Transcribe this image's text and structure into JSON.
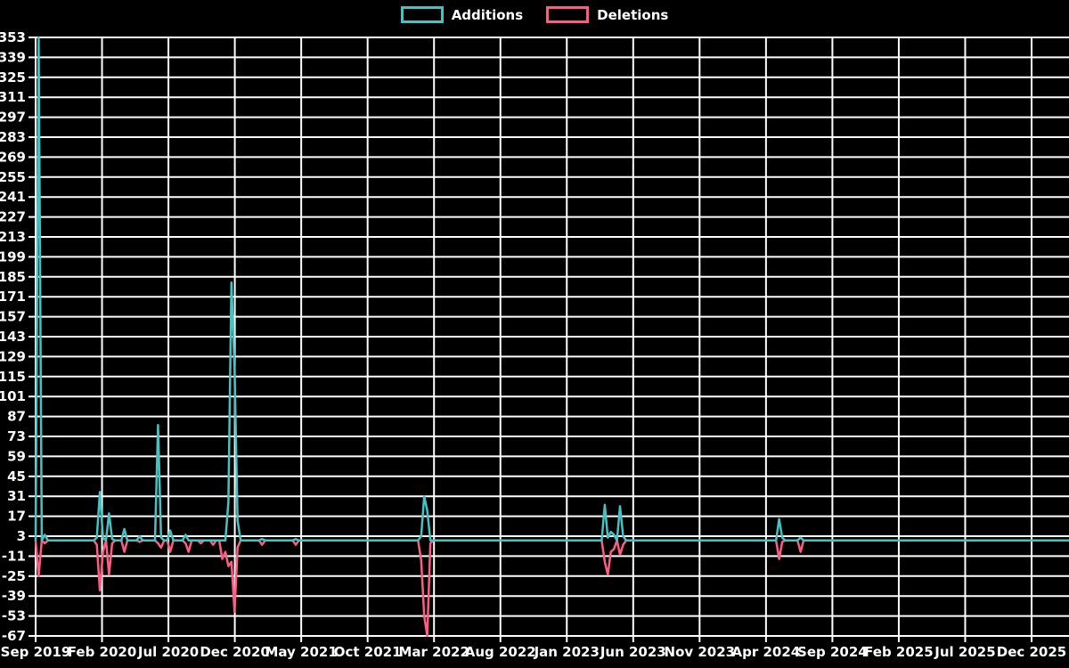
{
  "legend": {
    "additions_label": "Additions",
    "deletions_label": "Deletions"
  },
  "colors": {
    "background": "#000000",
    "grid": "#ffffff",
    "axis": "#ffffff",
    "text": "#ffffff",
    "additions": "#46c2c2",
    "deletions": "#ff5c84"
  },
  "chart_data": {
    "type": "line",
    "title": "",
    "xlabel": "",
    "ylabel": "",
    "legend_position": "top-center",
    "grid": true,
    "ylim": [
      -67,
      353
    ],
    "y_tick_step": 14,
    "y_ticks": [
      353,
      339,
      325,
      311,
      297,
      283,
      269,
      255,
      241,
      227,
      213,
      199,
      185,
      171,
      157,
      143,
      129,
      115,
      101,
      87,
      73,
      59,
      45,
      31,
      17,
      3,
      -11,
      -25,
      -39,
      -53,
      -67
    ],
    "x_tick_labels": [
      "Sep 2019",
      "Feb 2020",
      "Jul 2020",
      "Dec 2020",
      "May 2021",
      "Oct 2021",
      "Mar 2022",
      "Aug 2022",
      "Jan 2023",
      "Jun 2023",
      "Nov 2023",
      "Apr 2024",
      "Sep 2024",
      "Feb 2025",
      "Jul 2025",
      "Dec 2025"
    ],
    "x_unit": "week",
    "weeks_per_tick": 21.7,
    "weeks_total": 338,
    "default_value": 0,
    "series": [
      {
        "name": "Additions",
        "color": "#46c2c2",
        "points_sparse": [
          [
            1,
            353
          ],
          [
            3,
            4
          ],
          [
            20,
            2
          ],
          [
            21,
            34
          ],
          [
            22,
            2
          ],
          [
            24,
            19
          ],
          [
            25,
            1
          ],
          [
            29,
            8
          ],
          [
            34,
            3
          ],
          [
            40,
            81
          ],
          [
            41,
            2
          ],
          [
            44,
            7
          ],
          [
            49,
            4
          ],
          [
            63,
            27
          ],
          [
            64,
            181
          ],
          [
            65,
            120
          ],
          [
            66,
            14
          ],
          [
            74,
            1
          ],
          [
            85,
            1
          ],
          [
            126,
            3
          ],
          [
            127,
            31
          ],
          [
            128,
            21
          ],
          [
            186,
            25
          ],
          [
            187,
            2
          ],
          [
            188,
            6
          ],
          [
            189,
            4
          ],
          [
            191,
            24
          ],
          [
            192,
            3
          ],
          [
            243,
            15
          ],
          [
            244,
            2
          ],
          [
            250,
            2
          ]
        ]
      },
      {
        "name": "Deletions",
        "color": "#ff5c84",
        "points_sparse": [
          [
            1,
            -25
          ],
          [
            3,
            -2
          ],
          [
            20,
            -3
          ],
          [
            21,
            -35
          ],
          [
            22,
            -8
          ],
          [
            24,
            -24
          ],
          [
            25,
            -2
          ],
          [
            29,
            -8
          ],
          [
            34,
            -1
          ],
          [
            40,
            -2
          ],
          [
            41,
            -5
          ],
          [
            44,
            -8
          ],
          [
            49,
            -2
          ],
          [
            50,
            -8
          ],
          [
            54,
            -2
          ],
          [
            58,
            -3
          ],
          [
            61,
            -13
          ],
          [
            62,
            -8
          ],
          [
            63,
            -18
          ],
          [
            64,
            -15
          ],
          [
            65,
            -50
          ],
          [
            66,
            -5
          ],
          [
            74,
            -3
          ],
          [
            85,
            -3
          ],
          [
            126,
            -14
          ],
          [
            127,
            -53
          ],
          [
            128,
            -67
          ],
          [
            129,
            -2
          ],
          [
            186,
            -15
          ],
          [
            187,
            -24
          ],
          [
            188,
            -8
          ],
          [
            189,
            -6
          ],
          [
            191,
            -10
          ],
          [
            192,
            -3
          ],
          [
            243,
            -13
          ],
          [
            244,
            -1
          ],
          [
            250,
            -8
          ]
        ]
      }
    ]
  }
}
